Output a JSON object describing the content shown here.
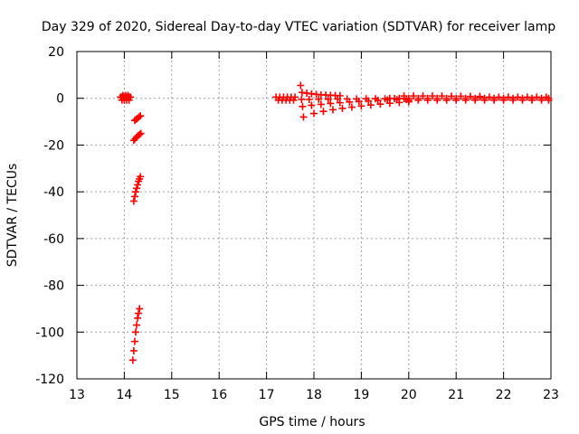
{
  "chart_data": {
    "type": "scatter",
    "title": "Day 329 of 2020, Sidereal Day-to-day VTEC variation (SDTVAR) for receiver lamp",
    "xlabel": "GPS time / hours",
    "ylabel": "SDTVAR / TECUs",
    "xlim": [
      13,
      23
    ],
    "ylim": [
      -120,
      20
    ],
    "xticks": [
      13,
      14,
      15,
      16,
      17,
      18,
      19,
      20,
      21,
      22,
      23
    ],
    "yticks": [
      -120,
      -100,
      -80,
      -60,
      -40,
      -20,
      0,
      20
    ],
    "xtick_labels": [
      "13",
      "14",
      "15",
      "16",
      "17",
      "18",
      "19",
      "20",
      "21",
      "22",
      "23"
    ],
    "ytick_labels": [
      "-120",
      "-100",
      "-80",
      "-60",
      "-40",
      "-20",
      "0",
      "20"
    ],
    "grid": true,
    "marker": "+",
    "series_color": "#ff0000",
    "series": [
      {
        "name": "SDTVAR",
        "x": [
          13.92,
          13.95,
          13.98,
          14.01,
          14.04,
          14.07,
          14.1,
          14.13,
          13.95,
          14.0,
          14.05,
          14.1,
          13.97,
          14.03,
          14.08,
          14.22,
          14.25,
          14.28,
          14.31,
          14.34,
          14.2,
          14.23,
          14.26,
          14.29,
          14.32,
          14.35,
          14.2,
          14.22,
          14.24,
          14.26,
          14.28,
          14.3,
          14.32,
          14.34,
          14.18,
          14.2,
          14.22,
          14.24,
          14.26,
          14.28,
          14.3,
          14.32,
          17.2,
          17.28,
          17.36,
          17.44,
          17.52,
          17.6,
          17.25,
          17.33,
          17.41,
          17.49,
          17.57,
          17.72,
          17.75,
          17.85,
          17.95,
          18.05,
          18.15,
          18.25,
          18.35,
          18.45,
          18.55,
          17.78,
          18.0,
          18.2,
          18.4,
          18.6,
          18.8,
          19.0,
          19.2,
          19.4,
          19.6,
          19.8,
          20.0,
          17.76,
          17.95,
          18.15,
          18.35,
          18.55,
          18.75,
          18.95,
          19.15,
          19.35,
          19.55,
          19.75,
          19.95,
          17.74,
          17.9,
          18.1,
          18.3,
          18.5,
          18.7,
          18.9,
          19.1,
          19.3,
          19.5,
          19.7,
          19.9,
          19.6,
          19.8,
          20.0,
          20.2,
          20.4,
          20.6,
          20.8,
          21.0,
          21.2,
          21.4,
          21.6,
          21.8,
          22.0,
          22.2,
          22.4,
          22.6,
          22.8,
          22.95,
          19.9,
          20.1,
          20.3,
          20.5,
          20.7,
          20.9,
          21.1,
          21.3,
          21.5,
          20.0,
          20.2,
          20.4,
          20.6,
          20.8,
          21.0,
          21.2,
          21.4,
          21.6,
          21.8,
          22.0,
          22.2,
          22.4,
          22.6,
          22.8,
          22.95,
          21.5,
          21.7,
          21.9,
          22.1,
          22.3,
          22.5,
          22.7,
          22.9
        ],
        "y": [
          0.5,
          0.5,
          0.5,
          0.5,
          0.5,
          0.5,
          0.5,
          0.5,
          -0.8,
          -0.8,
          -0.8,
          -0.8,
          1.2,
          1.2,
          1.2,
          -9.5,
          -9,
          -8.5,
          -8,
          -7.5,
          -18,
          -17.3,
          -16.6,
          -16,
          -15.5,
          -15,
          -44,
          -42,
          -40,
          -38.5,
          -37,
          -35.5,
          -34.5,
          -33.5,
          -112,
          -108,
          -104,
          -100,
          -97,
          -94,
          -92,
          -90,
          0.5,
          0.5,
          0.5,
          0.5,
          0.5,
          0.5,
          -0.8,
          -0.8,
          -0.8,
          -0.8,
          -0.8,
          5.5,
          2.5,
          2.2,
          1.9,
          1.7,
          1.5,
          1.4,
          1.3,
          1.2,
          1.1,
          -8,
          -6.5,
          -5.6,
          -4.9,
          -4.3,
          -3.8,
          -3.3,
          -2.9,
          -2.5,
          -2.1,
          -1.8,
          -1.5,
          -3.5,
          -3.0,
          -2.6,
          -2.2,
          -1.9,
          -1.6,
          -1.3,
          -1.1,
          -0.9,
          -0.7,
          -0.6,
          -0.5,
          -0.5,
          -0.5,
          -0.4,
          -0.4,
          -0.3,
          -0.3,
          -0.3,
          -0.2,
          -0.2,
          -0.2,
          -0.1,
          -0.1,
          0.0,
          0.0,
          0.0,
          0.0,
          0.0,
          0.0,
          0.0,
          0.0,
          0.0,
          0.0,
          0.0,
          0.0,
          0.0,
          0.0,
          0.0,
          0.0,
          0.0,
          0.0,
          1.0,
          1.0,
          1.0,
          1.0,
          1.0,
          0.9,
          0.9,
          0.8,
          0.8,
          -0.8,
          -0.8,
          -0.8,
          -0.8,
          -0.8,
          -0.8,
          -0.8,
          -0.8,
          -0.8,
          -0.8,
          -0.8,
          -0.8,
          -0.8,
          -0.8,
          -0.8,
          -0.8,
          0.5,
          0.5,
          0.5,
          0.5,
          0.5,
          0.5,
          0.5,
          0.5
        ]
      }
    ]
  }
}
